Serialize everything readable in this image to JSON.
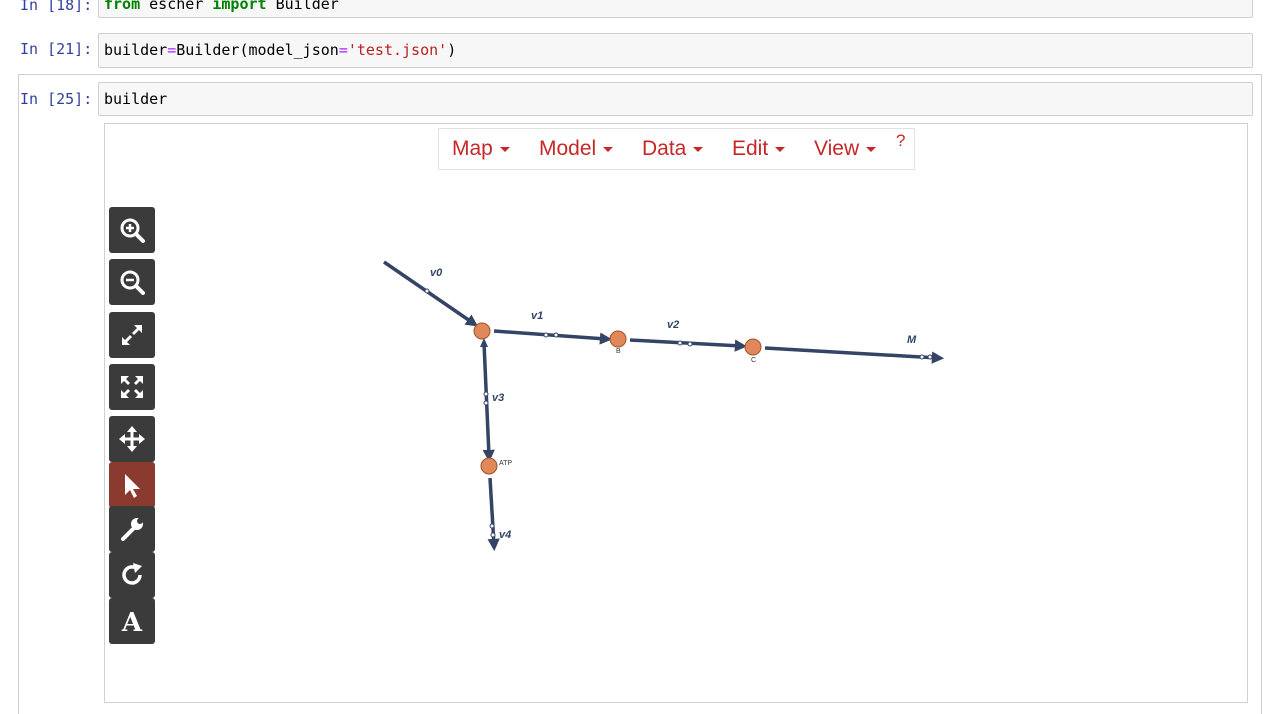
{
  "cells": [
    {
      "prompt": "In [18]:",
      "code_kw1": "from",
      "code_mid": " escher ",
      "code_kw2": "import",
      "code_end": " Builder"
    },
    {
      "prompt": "In [21]:",
      "code_a": "builder",
      "code_eq": "=",
      "code_b": "Builder(model_json",
      "code_eq2": "=",
      "code_str": "'test.json'",
      "code_c": ")"
    },
    {
      "prompt": "In [25]:",
      "code": "builder"
    }
  ],
  "escher_menu": {
    "items": [
      "Map",
      "Model",
      "Data",
      "Edit",
      "View"
    ],
    "help": "?"
  },
  "toolbar": {
    "tools": [
      "zoom-in-icon",
      "zoom-out-icon",
      "expand-icon",
      "fit-screen-icon",
      "pan-icon",
      "select-pointer-icon",
      "wrench-icon",
      "rotate-icon",
      "text-icon"
    ],
    "selected": "select-pointer-icon"
  },
  "map": {
    "reactions": [
      "v0",
      "v1",
      "v2",
      "M",
      "v3",
      "v4"
    ],
    "metabolites": [
      "",
      "B",
      "C",
      "ATP"
    ],
    "colors": {
      "path": "#334466",
      "node": "#e0885a",
      "node_stroke": "#a0522d"
    }
  }
}
